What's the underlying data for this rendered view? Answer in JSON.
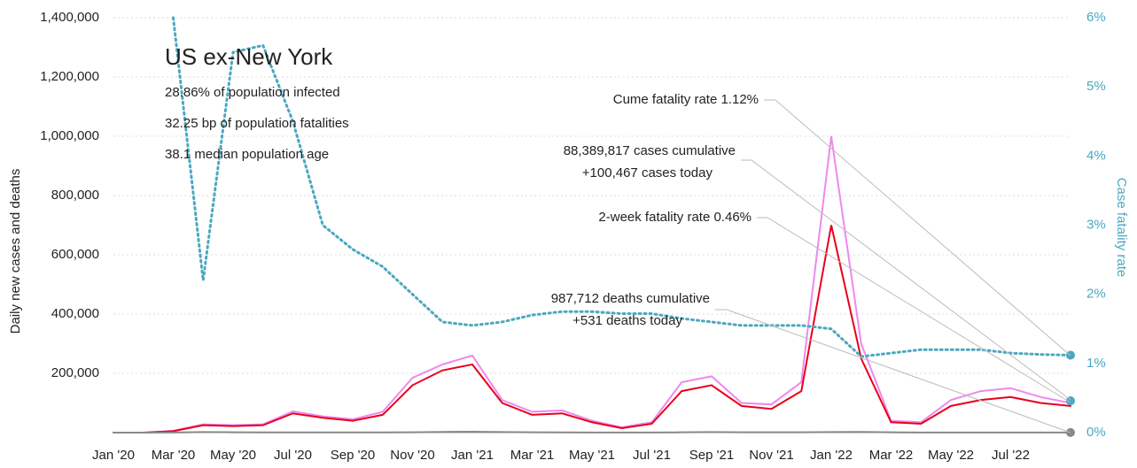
{
  "chart_data": {
    "type": "line",
    "title": "US ex-New York",
    "subtitle_lines": [
      "28.86% of population infected",
      "32.25 bp of population fatalities",
      "38.1 median population age"
    ],
    "y_label": "Daily new cases and deaths",
    "y2_label": "Case fatality rate",
    "x": [
      "2020-01",
      "2020-02",
      "2020-03",
      "2020-04",
      "2020-05",
      "2020-06",
      "2020-07",
      "2020-08",
      "2020-09",
      "2020-10",
      "2020-11",
      "2020-12",
      "2021-01",
      "2021-02",
      "2021-03",
      "2021-04",
      "2021-05",
      "2021-06",
      "2021-07",
      "2021-08",
      "2021-09",
      "2021-10",
      "2021-11",
      "2021-12",
      "2022-01",
      "2022-02",
      "2022-03",
      "2022-04",
      "2022-05",
      "2022-06",
      "2022-07",
      "2022-08",
      "2022-09"
    ],
    "xticks": [
      {
        "value": "2020-01",
        "label": "Jan '20"
      },
      {
        "value": "2020-03",
        "label": "Mar '20"
      },
      {
        "value": "2020-05",
        "label": "May '20"
      },
      {
        "value": "2020-07",
        "label": "Jul '20"
      },
      {
        "value": "2020-09",
        "label": "Sep '20"
      },
      {
        "value": "2020-11",
        "label": "Nov '20"
      },
      {
        "value": "2021-01",
        "label": "Jan '21"
      },
      {
        "value": "2021-03",
        "label": "Mar '21"
      },
      {
        "value": "2021-05",
        "label": "May '21"
      },
      {
        "value": "2021-07",
        "label": "Jul '21"
      },
      {
        "value": "2021-09",
        "label": "Sep '21"
      },
      {
        "value": "2021-11",
        "label": "Nov '21"
      },
      {
        "value": "2022-01",
        "label": "Jan '22"
      },
      {
        "value": "2022-03",
        "label": "Mar '22"
      },
      {
        "value": "2022-05",
        "label": "May '22"
      },
      {
        "value": "2022-07",
        "label": "Jul '22"
      }
    ],
    "xlim": [
      "2020-01",
      "2022-09"
    ],
    "ylim": [
      0,
      1400000
    ],
    "yticks": [
      {
        "value": 200000,
        "label": "200,000"
      },
      {
        "value": 400000,
        "label": "400,000"
      },
      {
        "value": 600000,
        "label": "600,000"
      },
      {
        "value": 800000,
        "label": "800,000"
      },
      {
        "value": 1000000,
        "label": "1,000,000"
      },
      {
        "value": 1200000,
        "label": "1,200,000"
      },
      {
        "value": 1400000,
        "label": "1,400,000"
      }
    ],
    "y2lim": [
      0,
      6
    ],
    "y2ticks": [
      {
        "value": 0,
        "label": "0%"
      },
      {
        "value": 1,
        "label": "1%"
      },
      {
        "value": 2,
        "label": "2%"
      },
      {
        "value": 3,
        "label": "3%"
      },
      {
        "value": 4,
        "label": "4%"
      },
      {
        "value": 5,
        "label": "5%"
      },
      {
        "value": 6,
        "label": "6%"
      }
    ],
    "grid": true,
    "series": [
      {
        "color": "#ee88ee",
        "values": [
          0,
          0,
          6000,
          28000,
          25000,
          28000,
          72000,
          55000,
          45000,
          70000,
          185000,
          230000,
          260000,
          110000,
          70000,
          75000,
          40000,
          18000,
          35000,
          170000,
          190000,
          100000,
          95000,
          170000,
          1000000,
          300000,
          40000,
          35000,
          110000,
          140000,
          150000,
          120000,
          100000
        ]
      },
      {
        "color": "#e8001c",
        "values": [
          0,
          0,
          5000,
          25000,
          22000,
          25000,
          65000,
          50000,
          40000,
          60000,
          160000,
          210000,
          230000,
          100000,
          60000,
          65000,
          35000,
          15000,
          30000,
          140000,
          160000,
          90000,
          80000,
          140000,
          700000,
          250000,
          35000,
          30000,
          90000,
          110000,
          120000,
          100000,
          90000
        ]
      },
      {
        "color": "#888888",
        "values": [
          0,
          0,
          500,
          1800,
          1200,
          600,
          900,
          900,
          700,
          700,
          1200,
          2300,
          2800,
          1800,
          1000,
          700,
          500,
          250,
          300,
          1000,
          1700,
          1200,
          1000,
          1200,
          2000,
          2300,
          1000,
          350,
          300,
          350,
          400,
          450,
          400
        ]
      },
      {
        "color": "#4aa8c0",
        "axis": "y2",
        "dashed": true,
        "values": [
          null,
          null,
          6,
          2.2,
          5.5,
          5.6,
          4.5,
          3,
          2.65,
          2.4,
          2.0,
          1.6,
          1.55,
          1.6,
          1.7,
          1.75,
          1.75,
          1.72,
          1.72,
          1.65,
          1.6,
          1.55,
          1.55,
          1.55,
          1.5,
          1.1,
          1.15,
          1.2,
          1.2,
          1.2,
          1.15,
          1.13,
          1.12
        ]
      }
    ],
    "markers": [
      {
        "value": 0.46,
        "axis": "y2",
        "color": "#4aa8c0"
      }
    ],
    "annotations": [
      "Cume fatality rate 1.12%",
      "88,389,817 cases cumulative",
      "+100,467 cases today",
      "2-week fatality rate 0.46%",
      "987,712 deaths cumulative",
      "+531 deaths today"
    ]
  }
}
